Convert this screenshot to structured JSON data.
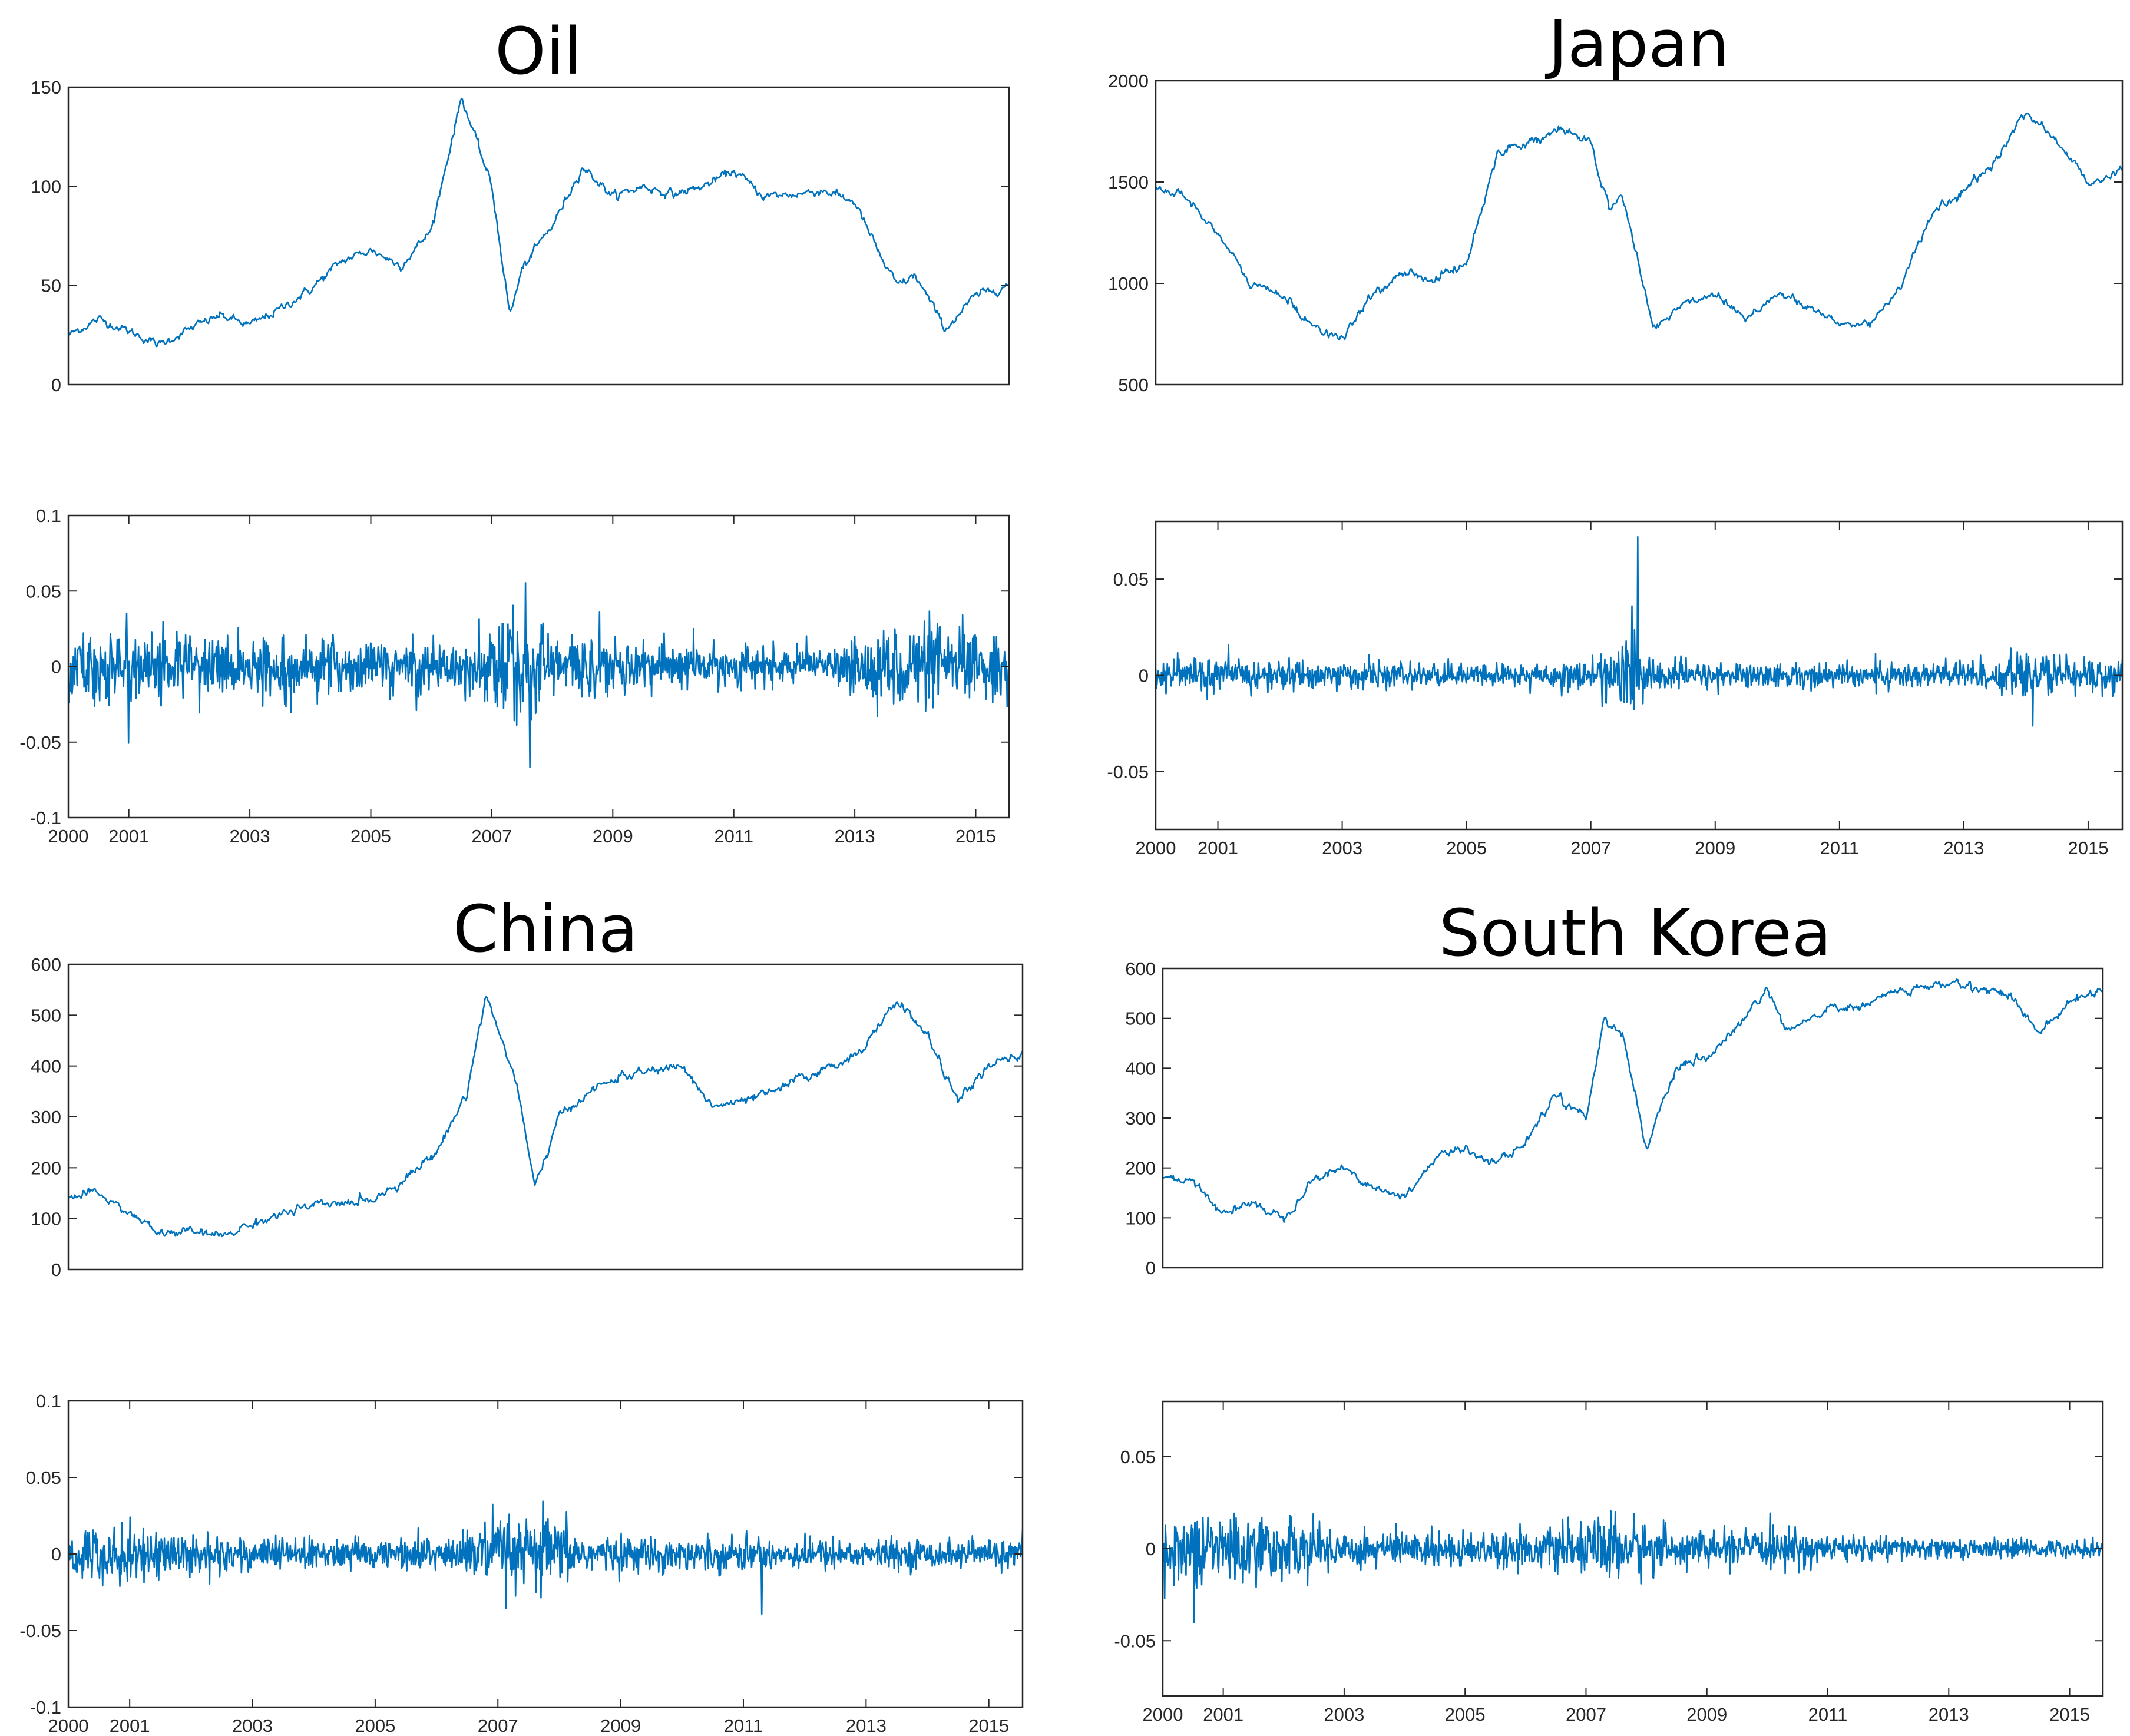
{
  "colors": {
    "series": "#0072BD",
    "axis": "#262626",
    "background": "#ffffff"
  },
  "chart_data": [
    {
      "type": "line",
      "title": "Oil",
      "xlabel": "",
      "ylabel": "",
      "xlim": [
        2000,
        2015.55
      ],
      "ylim": [
        0,
        150
      ],
      "yticks": [
        "0",
        "50",
        "100",
        "150"
      ],
      "xticks": [],
      "series": [
        {
          "x": [
            2000,
            2000.5,
            2001,
            2001.5,
            2002,
            2002.5,
            2003,
            2003.5,
            2004,
            2004.5,
            2005,
            2005.5,
            2006,
            2006.5,
            2007,
            2007.3,
            2007.5,
            2007.8,
            2008,
            2008.5,
            2009,
            2009.5,
            2010,
            2010.5,
            2011,
            2011.5,
            2012,
            2012.5,
            2013,
            2013.5,
            2013.7,
            2014,
            2014.5,
            2015,
            2015.5
          ],
          "values": [
            25,
            33,
            27,
            20,
            28,
            35,
            30,
            38,
            48,
            62,
            68,
            60,
            78,
            145,
            100,
            35,
            58,
            72,
            80,
            110,
            95,
            100,
            96,
            100,
            108,
            95,
            96,
            98,
            92,
            60,
            50,
            55,
            28,
            45,
            50
          ]
        }
      ]
    },
    {
      "type": "line",
      "title": "",
      "xlabel": "",
      "ylabel": "",
      "xlim": [
        2000,
        2015.55
      ],
      "ylim": [
        -0.1,
        0.1
      ],
      "yticks": [
        "-0.1",
        "-0.05",
        "0",
        "0.05",
        "0.1"
      ],
      "xticks": [
        "2000",
        "2001",
        "2003",
        "2005",
        "2007",
        "2009",
        "2011",
        "2013",
        "2015"
      ],
      "volatility": {
        "x": [
          2000,
          2001,
          2003,
          2005,
          2006.8,
          2007.2,
          2007.5,
          2008,
          2009,
          2011,
          2012.5,
          2013.5,
          2014.5,
          2015.5
        ],
        "values": [
          0.025,
          0.028,
          0.02,
          0.02,
          0.02,
          0.04,
          0.055,
          0.025,
          0.02,
          0.015,
          0.01,
          0.03,
          0.03,
          0.02
        ]
      }
    },
    {
      "type": "line",
      "title": "Japan",
      "xlabel": "",
      "ylabel": "",
      "xlim": [
        2000,
        2015.55
      ],
      "ylim": [
        500,
        2000
      ],
      "yticks": [
        "500",
        "1000",
        "1500",
        "2000"
      ],
      "xticks": [],
      "series": [
        {
          "x": [
            2000,
            2000.5,
            2001,
            2001.5,
            2002,
            2002.5,
            2003,
            2003.5,
            2004,
            2004.5,
            2005,
            2005.5,
            2006,
            2006.5,
            2007,
            2007.3,
            2007.5,
            2008,
            2008.5,
            2009,
            2009.5,
            2010,
            2010.5,
            2011,
            2011.5,
            2012,
            2012.5,
            2013,
            2013.5,
            2014,
            2014.5,
            2015,
            2015.5
          ],
          "values": [
            1480,
            1420,
            1250,
            1000,
            950,
            800,
            720,
            950,
            1050,
            1020,
            1100,
            1650,
            1700,
            1750,
            1700,
            1350,
            1450,
            780,
            900,
            950,
            830,
            950,
            880,
            800,
            800,
            1000,
            1350,
            1450,
            1600,
            1850,
            1700,
            1500,
            1550
          ]
        }
      ]
    },
    {
      "type": "line",
      "title": "",
      "xlabel": "",
      "ylabel": "",
      "xlim": [
        2000,
        2015.55
      ],
      "ylim": [
        -0.08,
        0.08
      ],
      "yticks": [
        "-0.05",
        "0",
        "0.05"
      ],
      "xticks": [
        "2000",
        "2001",
        "2003",
        "2005",
        "2007",
        "2009",
        "2011",
        "2013",
        "2015"
      ],
      "volatility": {
        "x": [
          2000,
          2001,
          2003,
          2005,
          2006.8,
          2007.2,
          2007.6,
          2008,
          2009,
          2011,
          2013,
          2014.5,
          2015.5
        ],
        "values": [
          0.01,
          0.01,
          0.008,
          0.006,
          0.008,
          0.012,
          0.025,
          0.01,
          0.007,
          0.007,
          0.009,
          0.012,
          0.01
        ]
      }
    },
    {
      "type": "line",
      "title": "China",
      "xlabel": "",
      "ylabel": "",
      "xlim": [
        2000,
        2015.55
      ],
      "ylim": [
        0,
        600
      ],
      "yticks": [
        "0",
        "100",
        "200",
        "300",
        "400",
        "500",
        "600"
      ],
      "xticks": [],
      "series": [
        {
          "x": [
            2000,
            2000.5,
            2001,
            2001.5,
            2002,
            2002.5,
            2003,
            2003.5,
            2004,
            2004.5,
            2005,
            2005.5,
            2006,
            2006.5,
            2006.8,
            2007.3,
            2007.6,
            2008,
            2008.5,
            2009,
            2009.5,
            2010,
            2010.5,
            2011,
            2011.5,
            2012,
            2012.5,
            2013,
            2013.5,
            2014,
            2014.5,
            2015,
            2015.5
          ],
          "values": [
            140,
            150,
            110,
            70,
            75,
            65,
            90,
            110,
            125,
            130,
            140,
            180,
            230,
            350,
            540,
            370,
            160,
            300,
            350,
            380,
            390,
            400,
            320,
            330,
            350,
            380,
            400,
            440,
            530,
            460,
            330,
            400,
            420
          ]
        }
      ]
    },
    {
      "type": "line",
      "title": "",
      "xlabel": "",
      "ylabel": "",
      "xlim": [
        2000,
        2015.55
      ],
      "ylim": [
        -0.1,
        0.1
      ],
      "yticks": [
        "-0.1",
        "-0.05",
        "0",
        "0.05",
        "0.1"
      ],
      "xticks": [
        "2000",
        "2001",
        "2003",
        "2005",
        "2007",
        "2009",
        "2011",
        "2013",
        "2015"
      ],
      "volatility": {
        "x": [
          2000,
          2001,
          2003,
          2005,
          2006.5,
          2006.9,
          2007.3,
          2007.7,
          2008.3,
          2009,
          2011,
          2013,
          2015.5
        ],
        "values": [
          0.02,
          0.02,
          0.012,
          0.01,
          0.015,
          0.03,
          0.02,
          0.03,
          0.015,
          0.012,
          0.012,
          0.01,
          0.01
        ]
      }
    },
    {
      "type": "line",
      "title": "South Korea",
      "xlabel": "",
      "ylabel": "",
      "xlim": [
        2000,
        2015.55
      ],
      "ylim": [
        0,
        600
      ],
      "yticks": [
        "0",
        "100",
        "200",
        "300",
        "400",
        "500",
        "600"
      ],
      "xticks": [],
      "series": [
        {
          "x": [
            2000,
            2000.5,
            2001,
            2001.5,
            2002,
            2002.5,
            2003,
            2003.5,
            2004,
            2004.5,
            2005,
            2005.5,
            2006,
            2006.5,
            2007,
            2007.3,
            2007.6,
            2008,
            2008.5,
            2009,
            2009.5,
            2010,
            2010.3,
            2011,
            2011.5,
            2012,
            2012.5,
            2013,
            2013.5,
            2014,
            2014.5,
            2015,
            2015.5
          ],
          "values": [
            180,
            170,
            110,
            130,
            100,
            180,
            200,
            160,
            140,
            220,
            240,
            210,
            250,
            350,
            300,
            500,
            470,
            240,
            400,
            420,
            480,
            560,
            470,
            520,
            520,
            550,
            560,
            570,
            560,
            550,
            470,
            530,
            560
          ]
        }
      ]
    },
    {
      "type": "line",
      "title": "",
      "xlabel": "",
      "ylabel": "",
      "xlim": [
        2000,
        2015.55
      ],
      "ylim": [
        -0.08,
        0.08
      ],
      "yticks": [
        "-0.05",
        "0",
        "0.05"
      ],
      "xticks": [
        "2000",
        "2001",
        "2003",
        "2005",
        "2007",
        "2009",
        "2011",
        "2013",
        "2015"
      ],
      "volatility": {
        "x": [
          2000,
          2001,
          2002,
          2003,
          2005,
          2006.8,
          2007.3,
          2007.7,
          2008.5,
          2010,
          2010.5,
          2011,
          2013,
          2015.5
        ],
        "values": [
          0.02,
          0.022,
          0.018,
          0.012,
          0.01,
          0.012,
          0.02,
          0.02,
          0.01,
          0.01,
          0.012,
          0.008,
          0.006,
          0.005
        ]
      }
    }
  ]
}
